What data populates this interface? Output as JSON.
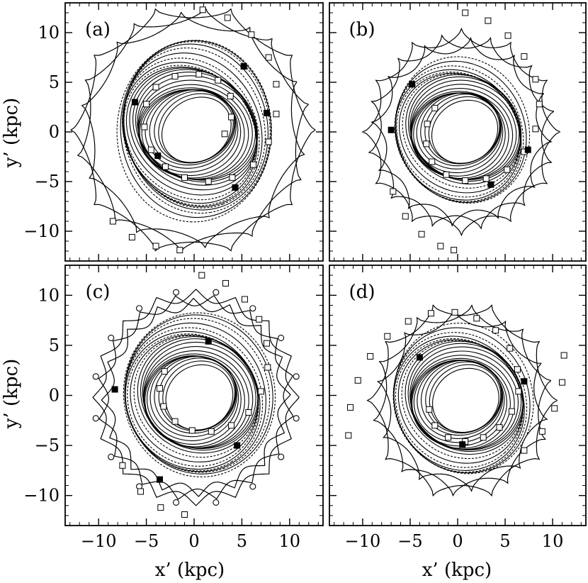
{
  "figure": {
    "xlabel": "x’ (kpc)",
    "ylabel": "y’ (kpc)",
    "ink_color": "#000000",
    "background": "#ffffff"
  },
  "chart_data": [
    {
      "type": "line",
      "panel_label": "(a)",
      "xlim": [
        -13.5,
        13.5
      ],
      "ylim": [
        -13,
        13
      ],
      "xticks": [
        -10,
        -5,
        0,
        5,
        10
      ],
      "yticks": [
        -10,
        -5,
        0,
        5,
        10
      ],
      "tick_labels_x": [
        "−10",
        "−5",
        "0",
        "5",
        "10"
      ],
      "tick_labels_y": [
        "−10",
        "−5",
        "0",
        "5",
        "10"
      ],
      "show_x_ticklabels": false,
      "show_y_ticklabels": true,
      "rings": {
        "r_min": 3.8,
        "r_max": 9.5,
        "count": 24,
        "center": [
          -0.1,
          0.2
        ],
        "ellipticity": 0.82
      },
      "outer_envelope": {
        "radius": 12.2,
        "lobes": 10,
        "style": "cusps"
      },
      "square_track": [
        {
          "x": 0.9,
          "y": 12.3
        },
        {
          "x": 3.5,
          "y": 11.5
        },
        {
          "x": 6.0,
          "y": 9.8
        },
        {
          "x": 7.8,
          "y": 7.5
        },
        {
          "x": 8.6,
          "y": 4.8
        },
        {
          "x": 8.6,
          "y": 1.8
        },
        {
          "x": 7.8,
          "y": -1.0
        },
        {
          "x": 6.2,
          "y": -3.3
        },
        {
          "x": 4.0,
          "y": -4.6
        },
        {
          "x": 1.5,
          "y": -5.0
        },
        {
          "x": -1.0,
          "y": -4.6
        },
        {
          "x": -3.0,
          "y": -3.5
        },
        {
          "x": -4.5,
          "y": -1.8
        },
        {
          "x": -5.2,
          "y": 0.5
        },
        {
          "x": -5.0,
          "y": 2.8
        },
        {
          "x": -4.0,
          "y": 4.5
        },
        {
          "x": -2.0,
          "y": 5.6
        },
        {
          "x": 0.5,
          "y": 5.8
        },
        {
          "x": 2.5,
          "y": 5.2
        },
        {
          "x": 3.8,
          "y": 3.6
        },
        {
          "x": 3.9,
          "y": 1.5
        },
        {
          "x": 3.2,
          "y": -0.2
        },
        {
          "x": -8.5,
          "y": -9.0
        },
        {
          "x": -6.5,
          "y": -10.6
        },
        {
          "x": -4.0,
          "y": -11.5
        },
        {
          "x": -1.5,
          "y": -11.9
        }
      ],
      "filled_squares": [
        {
          "x": 5.2,
          "y": 6.6
        },
        {
          "x": 7.6,
          "y": 1.9
        },
        {
          "x": -3.8,
          "y": -2.4
        },
        {
          "x": 4.3,
          "y": -5.6
        },
        {
          "x": -6.2,
          "y": 3.0
        }
      ]
    },
    {
      "type": "line",
      "panel_label": "(b)",
      "xlim": [
        -13.5,
        13.5
      ],
      "ylim": [
        -13,
        13
      ],
      "xticks": [
        -10,
        -5,
        0,
        5,
        10
      ],
      "yticks": [
        -10,
        -5,
        0,
        5,
        10
      ],
      "tick_labels_x": [
        "−10",
        "−5",
        "0",
        "5",
        "10"
      ],
      "tick_labels_y": [
        "−10",
        "−5",
        "0",
        "5",
        "10"
      ],
      "show_x_ticklabels": false,
      "show_y_ticklabels": false,
      "rings": {
        "r_min": 3.6,
        "r_max": 7.8,
        "count": 20,
        "center": [
          0.4,
          0.0
        ],
        "ellipticity": 0.85
      },
      "outer_envelope": {
        "radius": 9.8,
        "lobes": 12,
        "style": "cusps"
      },
      "square_track": [
        {
          "x": 0.8,
          "y": 12.0
        },
        {
          "x": 3.2,
          "y": 11.2
        },
        {
          "x": 5.3,
          "y": 9.7
        },
        {
          "x": 7.0,
          "y": 7.6
        },
        {
          "x": 8.2,
          "y": 5.3
        },
        {
          "x": 8.6,
          "y": 2.8
        },
        {
          "x": 8.2,
          "y": 0.3
        },
        {
          "x": 7.0,
          "y": -2.0
        },
        {
          "x": 5.2,
          "y": -3.8
        },
        {
          "x": 3.0,
          "y": -4.7
        },
        {
          "x": 0.8,
          "y": -4.9
        },
        {
          "x": -1.2,
          "y": -4.3
        },
        {
          "x": -2.7,
          "y": -3.0
        },
        {
          "x": -3.3,
          "y": -1.2
        },
        {
          "x": -3.2,
          "y": 0.8
        },
        {
          "x": -2.4,
          "y": 2.4
        },
        {
          "x": -6.8,
          "y": -6.0
        },
        {
          "x": -5.5,
          "y": -8.5
        },
        {
          "x": -3.8,
          "y": -10.3
        },
        {
          "x": -1.8,
          "y": -11.5
        },
        {
          "x": -0.4,
          "y": -11.9
        }
      ],
      "filled_squares": [
        {
          "x": -4.8,
          "y": 4.8
        },
        {
          "x": -7.0,
          "y": 0.2
        },
        {
          "x": 3.5,
          "y": -5.3
        },
        {
          "x": 7.4,
          "y": -1.8
        }
      ]
    },
    {
      "type": "line",
      "panel_label": "(c)",
      "xlim": [
        -13.5,
        13.5
      ],
      "ylim": [
        -13,
        13
      ],
      "xticks": [
        -10,
        -5,
        0,
        5,
        10
      ],
      "yticks": [
        -10,
        -5,
        0,
        5,
        10
      ],
      "tick_labels_x": [
        "−10",
        "−5",
        "0",
        "5",
        "10"
      ],
      "tick_labels_y": [
        "−10",
        "−5",
        "0",
        "5",
        "10"
      ],
      "show_x_ticklabels": true,
      "show_y_ticklabels": true,
      "rings": {
        "r_min": 3.6,
        "r_max": 8.6,
        "count": 22,
        "center": [
          0.2,
          -0.2
        ],
        "ellipticity": 0.88
      },
      "outer_envelope": {
        "radius": 10.4,
        "lobes": 16,
        "style": "loops"
      },
      "square_track": [
        {
          "x": 0.8,
          "y": 12.0
        },
        {
          "x": 3.3,
          "y": 11.2
        },
        {
          "x": 5.3,
          "y": 9.6
        },
        {
          "x": 6.8,
          "y": 7.6
        },
        {
          "x": 7.6,
          "y": 5.2
        },
        {
          "x": 7.7,
          "y": 2.8
        },
        {
          "x": 7.0,
          "y": 0.4
        },
        {
          "x": 5.7,
          "y": -1.7
        },
        {
          "x": 3.9,
          "y": -3.0
        },
        {
          "x": 1.8,
          "y": -3.6
        },
        {
          "x": -0.2,
          "y": -3.5
        },
        {
          "x": -2.0,
          "y": -2.6
        },
        {
          "x": -3.2,
          "y": -1.1
        },
        {
          "x": -3.6,
          "y": 0.7
        },
        {
          "x": -3.1,
          "y": 2.4
        },
        {
          "x": -7.5,
          "y": -7.0
        },
        {
          "x": -5.6,
          "y": -9.6
        },
        {
          "x": -3.5,
          "y": -11.2
        },
        {
          "x": -1.0,
          "y": -11.9
        }
      ],
      "filled_squares": [
        {
          "x": -8.3,
          "y": 0.6
        },
        {
          "x": 1.5,
          "y": 5.4
        },
        {
          "x": 4.5,
          "y": -5.0
        },
        {
          "x": -3.6,
          "y": -8.4
        }
      ]
    },
    {
      "type": "line",
      "panel_label": "(d)",
      "xlim": [
        -13.5,
        13.5
      ],
      "ylim": [
        -13,
        13
      ],
      "xticks": [
        -10,
        -5,
        0,
        5,
        10
      ],
      "yticks": [
        -10,
        -5,
        0,
        5,
        10
      ],
      "tick_labels_x": [
        "−10",
        "−5",
        "0",
        "5",
        "10"
      ],
      "tick_labels_y": [
        "−10",
        "−5",
        "0",
        "5",
        "10"
      ],
      "show_x_ticklabels": true,
      "show_y_ticklabels": false,
      "rings": {
        "r_min": 3.6,
        "r_max": 8.0,
        "count": 20,
        "center": [
          0.5,
          -0.5
        ],
        "ellipticity": 0.86
      },
      "outer_envelope": {
        "radius": 9.4,
        "lobes": 10,
        "style": "cusps"
      },
      "square_track": [
        {
          "x": -11.5,
          "y": -4.0
        },
        {
          "x": -11.3,
          "y": -1.2
        },
        {
          "x": -10.5,
          "y": 1.5
        },
        {
          "x": -9.2,
          "y": 3.9
        },
        {
          "x": -7.4,
          "y": 5.9
        },
        {
          "x": -5.2,
          "y": 7.4
        },
        {
          "x": -2.8,
          "y": 8.2
        },
        {
          "x": -0.3,
          "y": 8.3
        },
        {
          "x": 2.0,
          "y": 7.7
        },
        {
          "x": 4.0,
          "y": 6.5
        },
        {
          "x": 5.5,
          "y": 4.7
        },
        {
          "x": 6.3,
          "y": 2.6
        },
        {
          "x": 6.4,
          "y": 0.4
        },
        {
          "x": 5.7,
          "y": -1.6
        },
        {
          "x": 4.4,
          "y": -3.2
        },
        {
          "x": 2.7,
          "y": -4.2
        },
        {
          "x": 0.8,
          "y": -4.6
        },
        {
          "x": -1.0,
          "y": -4.2
        },
        {
          "x": -2.4,
          "y": -3.0
        },
        {
          "x": -3.0,
          "y": -1.4
        },
        {
          "x": 11.2,
          "y": 4.0
        },
        {
          "x": 11.0,
          "y": 1.3
        },
        {
          "x": 10.2,
          "y": -1.3
        },
        {
          "x": 8.9,
          "y": -3.6
        },
        {
          "x": 7.0,
          "y": -5.5
        }
      ],
      "filled_squares": [
        {
          "x": 7.0,
          "y": 1.4
        },
        {
          "x": -4.0,
          "y": 3.8
        },
        {
          "x": 0.5,
          "y": -4.9
        }
      ]
    }
  ]
}
